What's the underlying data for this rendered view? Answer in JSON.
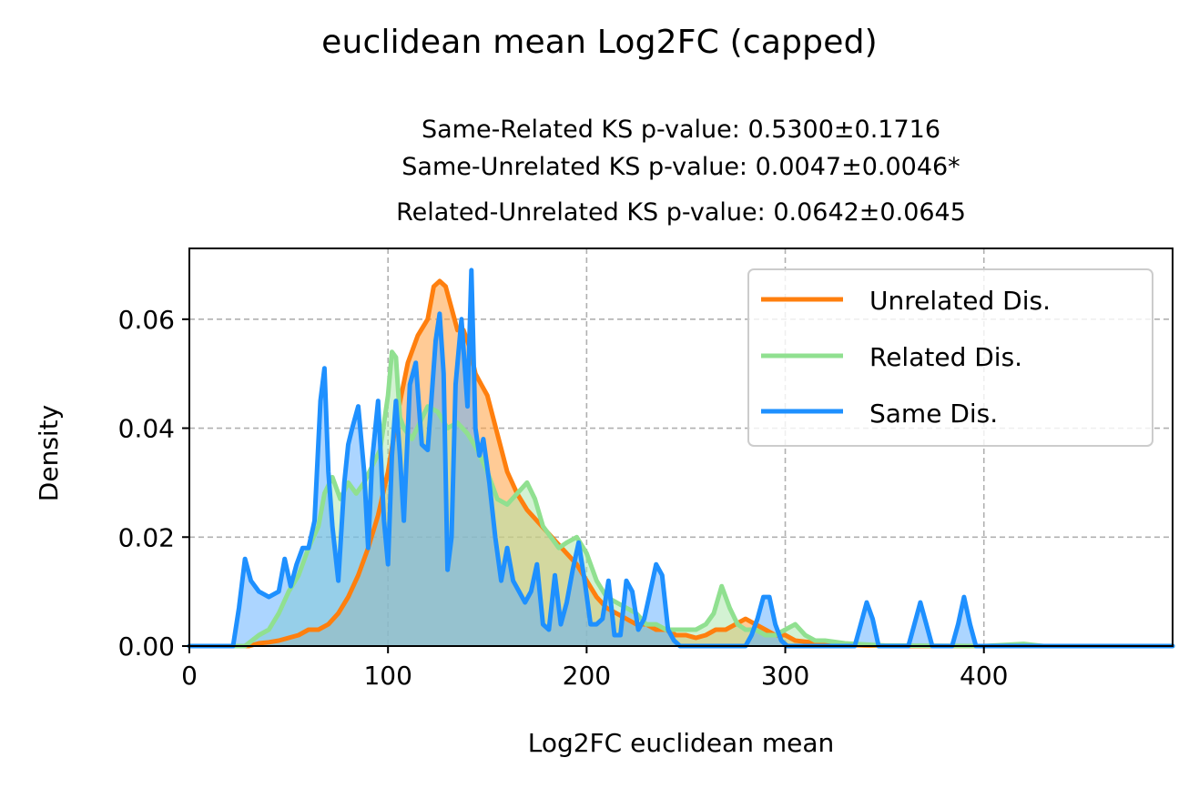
{
  "chart_data": {
    "type": "area",
    "title": "euclidean mean Log2FC (capped)",
    "subtitle_lines": [
      "Same-Related KS p-value: 0.5300±0.1716",
      "Same-Unrelated KS p-value: 0.0047±0.0046*",
      "Related-Unrelated KS p-value: 0.0642±0.0645"
    ],
    "xlabel": "Log2FC euclidean mean",
    "ylabel": "Density",
    "xlim": [
      0,
      495
    ],
    "ylim": [
      0,
      0.073
    ],
    "xticks": [
      0,
      100,
      200,
      300,
      400
    ],
    "yticks": [
      0.0,
      0.02,
      0.04,
      0.06
    ],
    "xtick_labels": [
      "0",
      "100",
      "200",
      "300",
      "400"
    ],
    "ytick_labels": [
      "0.00",
      "0.02",
      "0.04",
      "0.06"
    ],
    "grid": true,
    "legend_position": "top-right",
    "series": [
      {
        "name": "Unrelated Dis.",
        "color": "#ff7f0e",
        "fill_color": "#ffa040",
        "x": [
          0,
          30,
          35,
          40,
          45,
          50,
          55,
          60,
          65,
          70,
          75,
          80,
          85,
          90,
          95,
          100,
          105,
          110,
          115,
          120,
          123,
          126,
          129,
          132,
          135,
          138,
          141,
          144,
          147,
          150,
          155,
          160,
          165,
          170,
          175,
          180,
          185,
          190,
          195,
          200,
          205,
          210,
          215,
          220,
          225,
          230,
          235,
          240,
          245,
          250,
          255,
          260,
          265,
          270,
          275,
          280,
          285,
          290,
          295,
          300,
          305,
          310,
          320,
          330,
          340,
          360,
          400,
          495
        ],
        "values": [
          0,
          0,
          0.0005,
          0.0007,
          0.001,
          0.0015,
          0.002,
          0.003,
          0.003,
          0.004,
          0.006,
          0.009,
          0.013,
          0.018,
          0.024,
          0.032,
          0.043,
          0.052,
          0.057,
          0.06,
          0.066,
          0.067,
          0.066,
          0.062,
          0.058,
          0.058,
          0.055,
          0.05,
          0.048,
          0.046,
          0.039,
          0.032,
          0.028,
          0.025,
          0.023,
          0.021,
          0.019,
          0.017,
          0.015,
          0.012,
          0.009,
          0.007,
          0.006,
          0.005,
          0.004,
          0.004,
          0.003,
          0.003,
          0.002,
          0.002,
          0.0015,
          0.002,
          0.003,
          0.003,
          0.004,
          0.005,
          0.004,
          0.003,
          0.002,
          0.002,
          0.001,
          0.0008,
          0.0004,
          0.0002,
          0.0001,
          0,
          0,
          0
        ]
      },
      {
        "name": "Related Dis.",
        "color": "#90e090",
        "fill_color": "#a8e6a8",
        "x": [
          0,
          28,
          35,
          40,
          45,
          50,
          55,
          60,
          65,
          68,
          72,
          76,
          80,
          84,
          88,
          92,
          96,
          100,
          102,
          104,
          106,
          108,
          112,
          116,
          120,
          125,
          130,
          135,
          140,
          145,
          150,
          155,
          160,
          165,
          170,
          174,
          178,
          182,
          186,
          190,
          195,
          200,
          205,
          210,
          215,
          220,
          225,
          230,
          235,
          240,
          245,
          250,
          255,
          260,
          264,
          268,
          272,
          276,
          280,
          285,
          290,
          295,
          300,
          305,
          310,
          315,
          320,
          330,
          340,
          350,
          400,
          420,
          430,
          495
        ],
        "values": [
          0,
          0,
          0.002,
          0.003,
          0.006,
          0.01,
          0.013,
          0.018,
          0.022,
          0.028,
          0.031,
          0.027,
          0.03,
          0.028,
          0.03,
          0.033,
          0.036,
          0.046,
          0.054,
          0.053,
          0.042,
          0.04,
          0.038,
          0.041,
          0.044,
          0.043,
          0.04,
          0.041,
          0.039,
          0.036,
          0.032,
          0.027,
          0.026,
          0.028,
          0.03,
          0.027,
          0.022,
          0.02,
          0.018,
          0.019,
          0.02,
          0.017,
          0.012,
          0.009,
          0.008,
          0.007,
          0.006,
          0.004,
          0.004,
          0.003,
          0.003,
          0.003,
          0.003,
          0.004,
          0.006,
          0.011,
          0.007,
          0.004,
          0.003,
          0.003,
          0.002,
          0.002,
          0.003,
          0.004,
          0.002,
          0.001,
          0.001,
          0.0005,
          0.0003,
          0.0001,
          0,
          0.0004,
          0,
          0
        ]
      },
      {
        "name": "Same Dis.",
        "color": "#1e90ff",
        "fill_color": "#5aabff",
        "x": [
          0,
          22,
          25,
          28,
          31,
          35,
          40,
          45,
          48,
          51,
          54,
          57,
          60,
          63,
          66,
          68,
          70,
          72,
          75,
          78,
          80,
          82,
          85,
          88,
          90,
          92,
          95,
          98,
          100,
          102,
          104,
          106,
          108,
          111,
          114,
          117,
          120,
          122,
          124,
          126,
          128,
          130,
          132,
          134,
          137,
          140,
          142,
          144,
          146,
          148,
          151,
          154,
          157,
          160,
          163,
          166,
          169,
          172,
          175,
          178,
          181,
          184,
          187,
          190,
          193,
          196,
          199,
          202,
          205,
          208,
          211,
          214,
          217,
          220,
          223,
          226,
          229,
          232,
          235,
          238,
          241,
          244,
          247,
          250,
          280,
          283,
          286,
          289,
          292,
          295,
          298,
          301,
          335,
          338,
          341,
          344,
          347,
          362,
          365,
          368,
          371,
          374,
          384,
          387,
          390,
          393,
          396,
          495
        ],
        "values": [
          0,
          0,
          0.007,
          0.016,
          0.012,
          0.01,
          0.009,
          0.01,
          0.016,
          0.011,
          0.015,
          0.018,
          0.018,
          0.023,
          0.045,
          0.051,
          0.032,
          0.022,
          0.012,
          0.03,
          0.037,
          0.04,
          0.044,
          0.032,
          0.018,
          0.034,
          0.045,
          0.023,
          0.015,
          0.035,
          0.045,
          0.035,
          0.023,
          0.048,
          0.052,
          0.037,
          0.036,
          0.046,
          0.056,
          0.061,
          0.05,
          0.014,
          0.02,
          0.048,
          0.06,
          0.044,
          0.069,
          0.04,
          0.035,
          0.038,
          0.03,
          0.02,
          0.012,
          0.018,
          0.012,
          0.01,
          0.008,
          0.01,
          0.015,
          0.004,
          0.003,
          0.013,
          0.004,
          0.008,
          0.014,
          0.019,
          0.012,
          0.004,
          0.004,
          0.005,
          0.012,
          0.002,
          0.002,
          0.012,
          0.01,
          0.003,
          0.005,
          0.01,
          0.015,
          0.013,
          0.003,
          0.001,
          0,
          0,
          0,
          0.002,
          0.005,
          0.009,
          0.009,
          0.004,
          0.001,
          0,
          0,
          0.004,
          0.008,
          0.005,
          0,
          0,
          0.004,
          0.008,
          0.004,
          0,
          0,
          0.004,
          0.009,
          0.004,
          0,
          0
        ]
      }
    ]
  }
}
